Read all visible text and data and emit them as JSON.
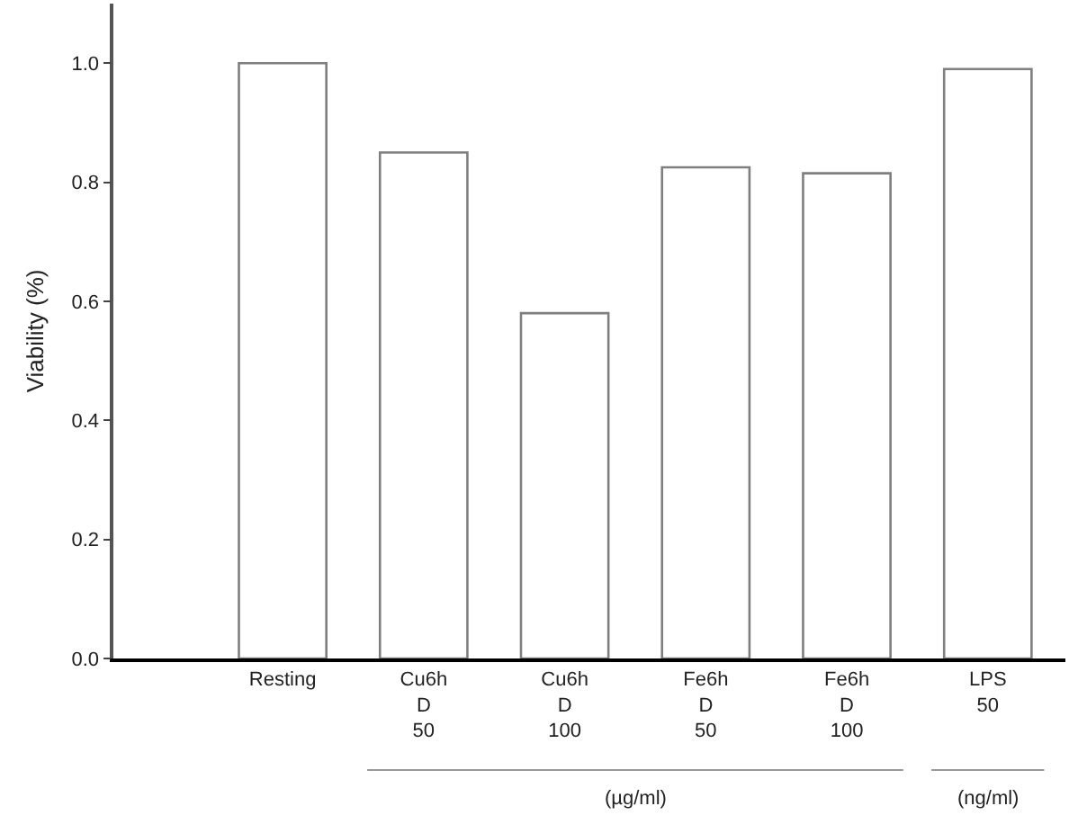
{
  "chart_data": {
    "type": "bar",
    "ylabel": "Viability (%)",
    "categories": [
      "Resting",
      "Cu6h\nD\n50",
      "Cu6h\nD\n100",
      "Fe6h\nD\n50",
      "Fe6h\nD\n100",
      "LPS\n50"
    ],
    "values": [
      1.0,
      0.85,
      0.58,
      0.825,
      0.815,
      0.99
    ],
    "color": "#ffffff",
    "ylim": [
      0,
      1.1
    ],
    "yticks": [
      {
        "value": 0,
        "label": "0.0"
      },
      0.2,
      0.4,
      0.6,
      0.8,
      {
        "value": 1,
        "label": "1.0"
      }
    ],
    "grid": false,
    "annotations": [
      "(µg/ml)",
      "(ng/ml)"
    ]
  }
}
